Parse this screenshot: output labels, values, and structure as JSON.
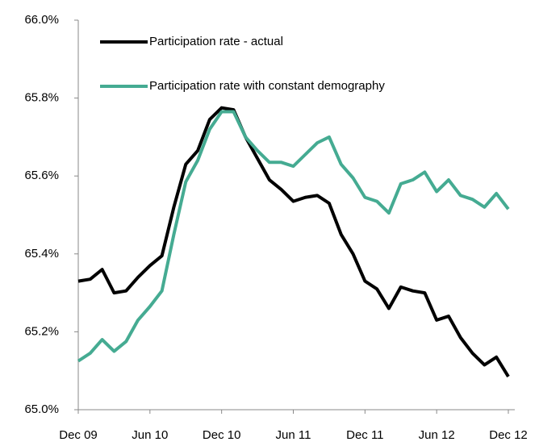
{
  "chart_data": {
    "type": "line",
    "categories": [
      "Dec 09",
      null,
      null,
      null,
      null,
      null,
      "Jun 10",
      null,
      null,
      null,
      null,
      null,
      "Dec 10",
      null,
      null,
      null,
      null,
      null,
      "Jun 11",
      null,
      null,
      null,
      null,
      null,
      "Dec 11",
      null,
      null,
      null,
      null,
      null,
      "Jun 12",
      null,
      null,
      null,
      null,
      null,
      "Dec 12"
    ],
    "series": [
      {
        "name": "Participation rate - actual",
        "color": "#000000",
        "values": [
          65.33,
          65.335,
          65.36,
          65.3,
          65.305,
          65.34,
          65.37,
          65.395,
          65.52,
          65.63,
          65.665,
          65.745,
          65.775,
          65.77,
          65.7,
          65.645,
          65.59,
          65.565,
          65.535,
          65.545,
          65.55,
          65.53,
          65.45,
          65.4,
          65.33,
          65.31,
          65.26,
          65.315,
          65.305,
          65.3,
          65.23,
          65.24,
          65.185,
          65.145,
          65.115,
          65.135,
          65.085
        ]
      },
      {
        "name": "Participation rate with constant demography",
        "color": "#45ab92",
        "values": [
          65.125,
          65.145,
          65.18,
          65.15,
          65.175,
          65.23,
          65.265,
          65.305,
          65.45,
          65.585,
          65.64,
          65.72,
          65.765,
          65.765,
          65.7,
          65.665,
          65.635,
          65.635,
          65.625,
          65.655,
          65.685,
          65.7,
          65.63,
          65.595,
          65.545,
          65.535,
          65.505,
          65.58,
          65.59,
          65.61,
          65.56,
          65.59,
          65.55,
          65.54,
          65.52,
          65.555,
          65.515
        ]
      }
    ],
    "ylim": [
      65.0,
      66.0
    ],
    "yticks": [
      {
        "value": 65.0,
        "label": "65.0%"
      },
      {
        "value": 65.2,
        "label": "65.2%"
      },
      {
        "value": 65.4,
        "label": "65.4%"
      },
      {
        "value": 65.6,
        "label": "65.6%"
      },
      {
        "value": 65.8,
        "label": "65.8%"
      },
      {
        "value": 66.0,
        "label": "66.0%"
      }
    ],
    "grid": false,
    "legend": "upper left"
  }
}
